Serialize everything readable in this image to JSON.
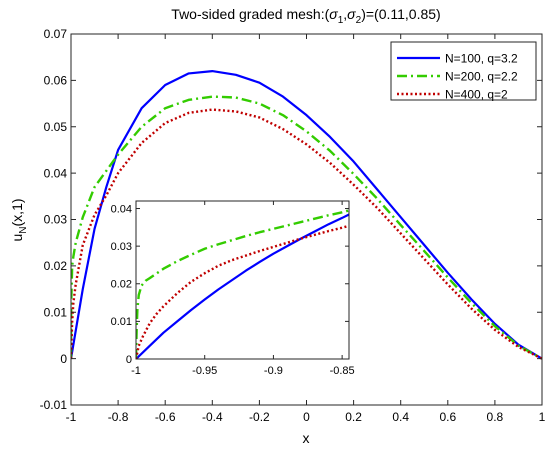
{
  "chart_data": [
    {
      "type": "line",
      "title_prefix": "Two-sided graded mesh:(",
      "title_sigma1": "σ",
      "title_sub1": "1",
      "title_comma": ",",
      "title_sigma2": "σ",
      "title_sub2": "2",
      "title_suffix": ")=(0.11,0.85)",
      "xlabel": "x",
      "ylabel_main": "u",
      "ylabel_sub": "N",
      "ylabel_rest": "(x,1)",
      "xlim": [
        -1,
        1
      ],
      "ylim": [
        -0.01,
        0.07
      ],
      "xticks": [
        -1,
        -0.8,
        -0.6,
        -0.4,
        -0.2,
        0,
        0.2,
        0.4,
        0.6,
        0.8,
        1
      ],
      "xtick_labels": [
        "-1",
        "-0.8",
        "-0.6",
        "-0.4",
        "-0.2",
        "0",
        "0.2",
        "0.4",
        "0.6",
        "0.8",
        "1"
      ],
      "yticks": [
        -0.01,
        0,
        0.01,
        0.02,
        0.03,
        0.04,
        0.05,
        0.06,
        0.07
      ],
      "ytick_labels": [
        "-0.01",
        "0",
        "0.01",
        "0.02",
        "0.03",
        "0.04",
        "0.05",
        "0.06",
        "0.07"
      ],
      "legend_position": "top-right",
      "series": [
        {
          "name": "N=100, q=3.2",
          "color": "#0000ff",
          "dash": "solid",
          "x": [
            -1,
            -0.99,
            -0.98,
            -0.95,
            -0.9,
            -0.85,
            -0.8,
            -0.7,
            -0.6,
            -0.5,
            -0.4,
            -0.3,
            -0.2,
            -0.1,
            0,
            0.1,
            0.2,
            0.3,
            0.4,
            0.5,
            0.6,
            0.7,
            0.8,
            0.9,
            1
          ],
          "y": [
            0,
            0.003,
            0.006,
            0.015,
            0.028,
            0.037,
            0.045,
            0.054,
            0.059,
            0.0615,
            0.062,
            0.0612,
            0.0595,
            0.0565,
            0.0525,
            0.0478,
            0.0425,
            0.0365,
            0.0305,
            0.0245,
            0.0185,
            0.0128,
            0.0075,
            0.003,
            0
          ]
        },
        {
          "name": "N=200, q=2.2",
          "color": "#33cc00",
          "dash": "dashdot",
          "x": [
            -1,
            -0.999,
            -0.995,
            -0.99,
            -0.98,
            -0.95,
            -0.9,
            -0.85,
            -0.8,
            -0.7,
            -0.6,
            -0.5,
            -0.4,
            -0.3,
            -0.2,
            -0.1,
            0,
            0.1,
            0.2,
            0.3,
            0.4,
            0.5,
            0.6,
            0.7,
            0.8,
            0.9,
            1
          ],
          "y": [
            0,
            0.012,
            0.02,
            0.022,
            0.025,
            0.0305,
            0.037,
            0.0405,
            0.044,
            0.05,
            0.054,
            0.0558,
            0.0565,
            0.0563,
            0.055,
            0.0525,
            0.049,
            0.0448,
            0.0398,
            0.0345,
            0.0288,
            0.0232,
            0.0175,
            0.012,
            0.007,
            0.0028,
            0
          ]
        },
        {
          "name": "N=400, q=2",
          "color": "#c00000",
          "dash": "dotted",
          "x": [
            -1,
            -0.995,
            -0.99,
            -0.98,
            -0.95,
            -0.9,
            -0.85,
            -0.8,
            -0.7,
            -0.6,
            -0.5,
            -0.4,
            -0.3,
            -0.2,
            -0.1,
            0,
            0.1,
            0.2,
            0.3,
            0.4,
            0.5,
            0.6,
            0.7,
            0.8,
            0.9,
            1
          ],
          "y": [
            0,
            0.008,
            0.012,
            0.016,
            0.0245,
            0.031,
            0.0352,
            0.04,
            0.0465,
            0.0508,
            0.053,
            0.0537,
            0.0533,
            0.052,
            0.0495,
            0.0462,
            0.0422,
            0.0375,
            0.0325,
            0.027,
            0.0215,
            0.016,
            0.0108,
            0.0062,
            0.0025,
            0
          ]
        }
      ]
    },
    {
      "type": "line",
      "inset": true,
      "xlim": [
        -1,
        -0.845
      ],
      "ylim": [
        0,
        0.042
      ],
      "xticks": [
        -1,
        -0.95,
        -0.9,
        -0.85
      ],
      "xtick_labels": [
        "-1",
        "-0.95",
        "-0.9",
        "-0.85"
      ],
      "yticks": [
        0,
        0.01,
        0.02,
        0.03,
        0.04
      ],
      "ytick_labels": [
        "0",
        "0.01",
        "0.02",
        "0.03",
        "0.04"
      ],
      "series": [
        {
          "name": "N=100, q=3.2",
          "color": "#0000ff",
          "dash": "solid",
          "x": [
            -1,
            -0.99,
            -0.98,
            -0.97,
            -0.96,
            -0.95,
            -0.94,
            -0.93,
            -0.92,
            -0.91,
            -0.9,
            -0.89,
            -0.88,
            -0.87,
            -0.86,
            -0.85,
            -0.845
          ],
          "y": [
            0,
            0.0035,
            0.007,
            0.01,
            0.013,
            0.0158,
            0.0185,
            0.021,
            0.0235,
            0.0258,
            0.028,
            0.03,
            0.032,
            0.0339,
            0.0358,
            0.0375,
            0.0384
          ]
        },
        {
          "name": "N=200, q=2.2",
          "color": "#33cc00",
          "dash": "dashdot",
          "x": [
            -1,
            -0.9995,
            -0.999,
            -0.998,
            -0.996,
            -0.993,
            -0.99,
            -0.98,
            -0.97,
            -0.96,
            -0.95,
            -0.94,
            -0.93,
            -0.92,
            -0.91,
            -0.9,
            -0.89,
            -0.88,
            -0.87,
            -0.86,
            -0.85,
            -0.845
          ],
          "y": [
            0,
            0.008,
            0.013,
            0.017,
            0.0195,
            0.0208,
            0.0215,
            0.024,
            0.026,
            0.0277,
            0.0293,
            0.0305,
            0.0316,
            0.0327,
            0.0337,
            0.0346,
            0.0355,
            0.0364,
            0.0373,
            0.0382,
            0.039,
            0.0395
          ]
        },
        {
          "name": "N=400, q=2",
          "color": "#c00000",
          "dash": "dotted",
          "x": [
            -1,
            -0.998,
            -0.995,
            -0.99,
            -0.985,
            -0.98,
            -0.97,
            -0.96,
            -0.95,
            -0.94,
            -0.93,
            -0.92,
            -0.91,
            -0.9,
            -0.89,
            -0.88,
            -0.87,
            -0.86,
            -0.85,
            -0.845
          ],
          "y": [
            0,
            0.0035,
            0.006,
            0.0095,
            0.012,
            0.014,
            0.0175,
            0.0205,
            0.0228,
            0.0248,
            0.0263,
            0.0275,
            0.0287,
            0.0298,
            0.0309,
            0.032,
            0.033,
            0.034,
            0.0349,
            0.0354
          ]
        }
      ]
    }
  ]
}
